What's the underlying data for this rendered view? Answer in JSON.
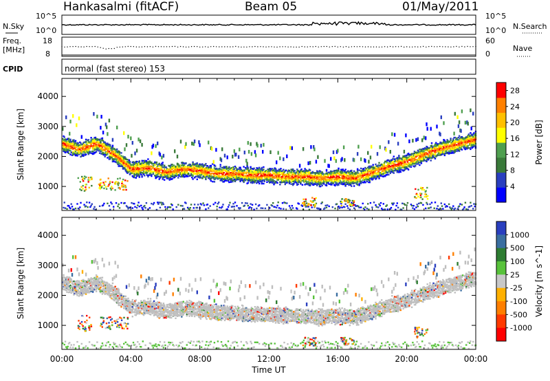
{
  "header": {
    "title": "Hankasalmi (fitACF)",
    "beam": "Beam 05",
    "date": "01/May/2011"
  },
  "strip_labels": {
    "nsky": "N.Sky",
    "nsky_top": "10^5",
    "nsky_bottom": "10^0",
    "nsearch": "N.Search",
    "nsearch_top": "10^5",
    "nsearch_bottom": "10^0",
    "freq": "Freq.",
    "freq_unit": "[MHz]",
    "freq_top": "18",
    "freq_bottom": "8",
    "nave": "Nave",
    "nave_top": "60",
    "nave_bottom": "0",
    "cpid": "CPID",
    "mode": "normal (fast stereo) 153"
  },
  "colors": {
    "power": [
      "#0000ff",
      "#2a3fbf",
      "#3a7a3a",
      "#4f9f4f",
      "#ffff00",
      "#ffc000",
      "#ff8000",
      "#ff0000"
    ],
    "velocity": [
      "#2a3fbf",
      "#3a6ea0",
      "#2e7d32",
      "#58c23b",
      "#c8c8c8",
      "#ffb000",
      "#ff7f00",
      "#ff3a00",
      "#ff0000"
    ],
    "ground_scatter": "#bebebe"
  },
  "chart_data": [
    {
      "type": "heatmap",
      "panel": "power",
      "ylabel": "Slant Range [km]",
      "xlabel": "",
      "yticks": [
        "1000",
        "2000",
        "3000",
        "4000"
      ],
      "ylim": [
        200,
        4600
      ],
      "colorbar_label": "Power [dB]",
      "colorbar_ticks": [
        "4",
        "8",
        "12",
        "16",
        "20",
        "24",
        "28"
      ],
      "colorbar_range": [
        0,
        30
      ]
    },
    {
      "type": "heatmap",
      "panel": "velocity",
      "ylabel": "Slant Range [km]",
      "xlabel": "Time UT",
      "yticks": [
        "1000",
        "2000",
        "3000",
        "4000"
      ],
      "ylim": [
        200,
        4600
      ],
      "xticks": [
        "00:00",
        "04:00",
        "08:00",
        "12:00",
        "16:00",
        "20:00",
        "00:00"
      ],
      "xlim_hours": [
        0,
        24
      ],
      "colorbar_label": "Velocity [m s^-1]",
      "colorbar_ticks": [
        "1000",
        "500",
        "100",
        "25",
        "-25",
        "-100",
        "-500",
        "-1000"
      ],
      "colorbar_range": [
        -1000,
        1000
      ]
    }
  ]
}
